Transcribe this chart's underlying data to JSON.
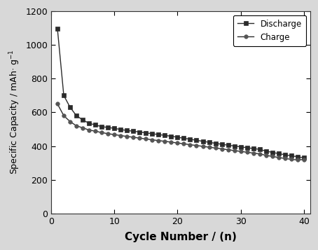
{
  "discharge_x": [
    1,
    2,
    3,
    4,
    5,
    6,
    7,
    8,
    9,
    10,
    11,
    12,
    13,
    14,
    15,
    16,
    17,
    18,
    19,
    20,
    21,
    22,
    23,
    24,
    25,
    26,
    27,
    28,
    29,
    30,
    31,
    32,
    33,
    34,
    35,
    36,
    37,
    38,
    39,
    40
  ],
  "discharge_y": [
    1095,
    700,
    630,
    580,
    555,
    535,
    525,
    515,
    510,
    505,
    498,
    492,
    488,
    483,
    478,
    473,
    468,
    463,
    458,
    452,
    446,
    440,
    434,
    428,
    422,
    416,
    410,
    405,
    400,
    395,
    390,
    385,
    380,
    370,
    362,
    355,
    348,
    342,
    336,
    330
  ],
  "charge_x": [
    1,
    2,
    3,
    4,
    5,
    6,
    7,
    8,
    9,
    10,
    11,
    12,
    13,
    14,
    15,
    16,
    17,
    18,
    19,
    20,
    21,
    22,
    23,
    24,
    25,
    26,
    27,
    28,
    29,
    30,
    31,
    32,
    33,
    34,
    35,
    36,
    37,
    38,
    39,
    40
  ],
  "charge_y": [
    650,
    580,
    545,
    520,
    508,
    495,
    488,
    480,
    473,
    468,
    462,
    457,
    452,
    447,
    442,
    437,
    432,
    428,
    423,
    418,
    413,
    408,
    403,
    398,
    393,
    388,
    383,
    378,
    373,
    368,
    363,
    358,
    353,
    345,
    338,
    332,
    326,
    321,
    317,
    320
  ],
  "xlabel": "Cycle Number / (n)",
  "xlim": [
    0,
    41
  ],
  "ylim": [
    0,
    1200
  ],
  "xticks": [
    0,
    10,
    20,
    30,
    40
  ],
  "yticks": [
    0,
    200,
    400,
    600,
    800,
    1000,
    1200
  ],
  "discharge_label": "Discharge",
  "charge_label": "Charge",
  "line_color": "#2b2b2b",
  "discharge_marker": "s",
  "charge_marker": "o",
  "discharge_marker_size": 4,
  "charge_marker_size": 4,
  "line_width": 1.0,
  "legend_loc": "upper right",
  "background_color": "#d8d8d8",
  "plot_bg_color": "#ffffff"
}
